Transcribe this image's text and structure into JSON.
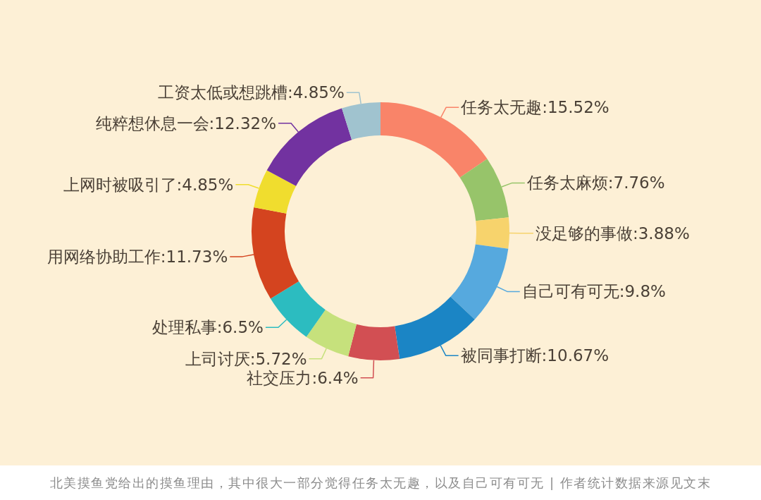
{
  "chart_data": {
    "type": "donut",
    "categories": [
      "任务太无趣",
      "任务太麻烦",
      "没足够的事做",
      "自己可有可无",
      "被同事打断",
      "社交压力",
      "上司讨厌",
      "处理私事",
      "用网络协助工作",
      "上网时被吸引了",
      "纯粹想休息一会",
      "工资太低或想跳槽"
    ],
    "values": [
      15.52,
      7.76,
      3.88,
      9.8,
      10.67,
      6.4,
      5.72,
      6.5,
      11.73,
      4.85,
      12.32,
      4.85
    ],
    "value_labels": [
      "15.52%",
      "7.76%",
      "3.88%",
      "9.8%",
      "10.67%",
      "6.4%",
      "5.72%",
      "6.5%",
      "11.73%",
      "4.85%",
      "12.32%",
      "4.85%"
    ],
    "colors": [
      "#f98469",
      "#97c46a",
      "#f7d36c",
      "#56a9de",
      "#1b85c5",
      "#d24f53",
      "#c6e17c",
      "#2cbcc0",
      "#d4441f",
      "#f0dd2e",
      "#7232a0",
      "#a0c3cf"
    ],
    "annotations": [
      "北美摸鱼党给出的摸鱼理由，其中很大一部分觉得任务太无趣，以及自己可有可无 | 作者统计数据来源见文末"
    ]
  }
}
